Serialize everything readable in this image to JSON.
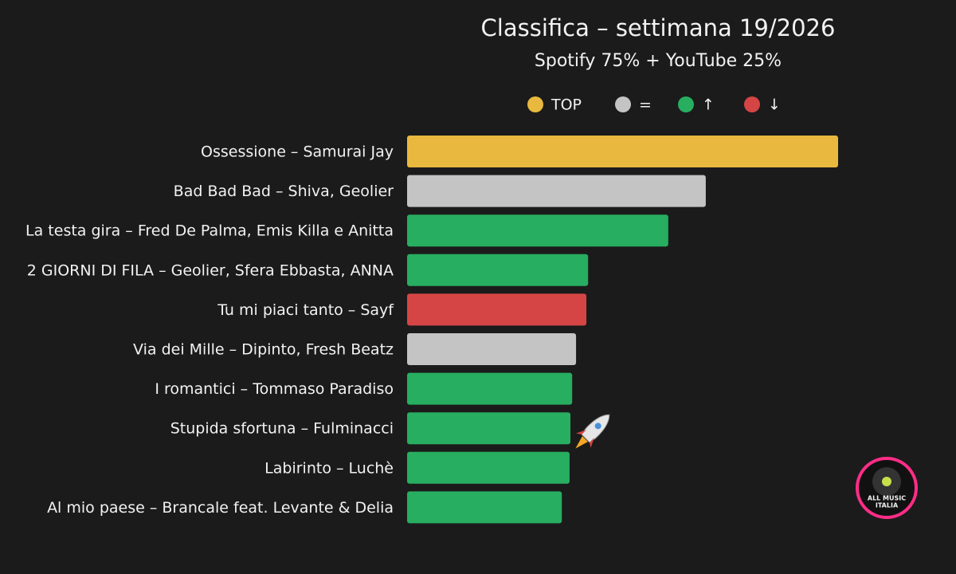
{
  "chart_data": {
    "type": "bar",
    "orientation": "horizontal",
    "title": "Classifica – settimana 19/2026",
    "subtitle": "Spotify 75% + YouTube 25%",
    "legend": [
      {
        "label": "TOP",
        "color": "#e8b93e"
      },
      {
        "label": "=",
        "color": "#c4c4c4"
      },
      {
        "label": "↑",
        "color": "#27ae60"
      },
      {
        "label": "↓",
        "color": "#d64545"
      }
    ],
    "categories": [
      "Ossessione – Samurai Jay",
      "Bad Bad Bad – Shiva, Geolier",
      "La testa gira – Fred De Palma, Emis Killa e Anitta",
      "2 GIORNI DI FILA – Geolier, Sfera Ebbasta, ANNA",
      "Tu mi piaci tanto – Sayf",
      "Via dei Mille – Dipinto, Fresh Beatz",
      "I romantici – Tommaso Paradiso",
      "Stupida sfortuna – Fulminacci",
      "Labirinto – Luchè",
      "Al mio paese – Brancale feat. Levante & Delia"
    ],
    "values": [
      100,
      69.3,
      60.6,
      42.0,
      41.6,
      39.2,
      38.3,
      37.9,
      37.7,
      35.9
    ],
    "colors": [
      "#e8b93e",
      "#c4c4c4",
      "#27ae60",
      "#27ae60",
      "#d64545",
      "#c4c4c4",
      "#27ae60",
      "#27ae60",
      "#27ae60",
      "#27ae60"
    ],
    "logo_text": [
      "ALL MUSIC",
      "ITALIA"
    ]
  }
}
